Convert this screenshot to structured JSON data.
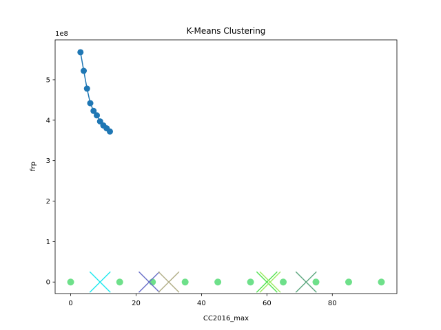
{
  "chart_data": {
    "type": "scatter",
    "title": "K-Means Clustering",
    "xlabel": "CC2016_max",
    "ylabel": "frp",
    "y_offset_text": "1e8",
    "xlim": [
      -4.75,
      99.75
    ],
    "ylim": [
      -0.285,
      5.985
    ],
    "x_ticks": [
      0,
      20,
      40,
      60,
      80
    ],
    "y_ticks": [
      0,
      1,
      2,
      3,
      4,
      5
    ],
    "grid": false,
    "series": [
      {
        "type": "line",
        "color": "#1f77b4",
        "x": [
          3,
          4,
          5,
          6,
          7,
          8,
          9,
          10,
          11,
          12
        ],
        "y": [
          5.68,
          5.22,
          4.78,
          4.42,
          4.23,
          4.12,
          3.97,
          3.87,
          3.8,
          3.72
        ]
      },
      {
        "type": "scatter",
        "color": "#6ee08a",
        "x": [
          0,
          15,
          25,
          35,
          45,
          55,
          65,
          75,
          85,
          95
        ],
        "y": [
          0,
          0,
          0,
          0,
          0,
          0,
          0,
          0,
          0,
          0
        ]
      },
      {
        "type": "centroids",
        "points": [
          {
            "x": 9,
            "y": 0,
            "color": "#22e8ee"
          },
          {
            "x": 24,
            "y": 0,
            "color": "#6a6fc8"
          },
          {
            "x": 30,
            "y": 0,
            "color": "#b3b08a"
          },
          {
            "x": 60,
            "y": 0,
            "color": "#56e356"
          },
          {
            "x": 61,
            "y": 0,
            "color": "#a0ec66"
          },
          {
            "x": 72,
            "y": 0,
            "color": "#5fa880"
          }
        ]
      }
    ]
  }
}
